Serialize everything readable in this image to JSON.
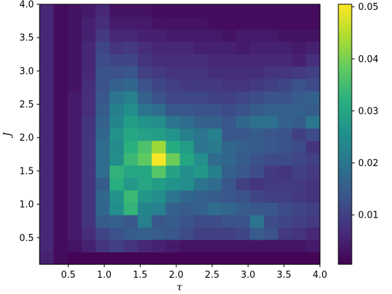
{
  "chart_data": {
    "type": "heatmap",
    "title": "",
    "xlabel": "τ",
    "ylabel": "J",
    "xlim": [
      0.1,
      4.0
    ],
    "ylim": [
      0.1,
      4.0
    ],
    "x_ticks": [
      "0.5",
      "1.0",
      "1.5",
      "2.0",
      "2.5",
      "3.0",
      "3.5",
      "4.0"
    ],
    "x_tick_values": [
      0.5,
      1.0,
      1.5,
      2.0,
      2.5,
      3.0,
      3.5,
      4.0
    ],
    "y_ticks": [
      "0.5",
      "1.0",
      "1.5",
      "2.0",
      "2.5",
      "3.0",
      "3.5",
      "4.0"
    ],
    "y_tick_values": [
      0.5,
      1.0,
      1.5,
      2.0,
      2.5,
      3.0,
      3.5,
      4.0
    ],
    "colormap": "viridis",
    "colorbar_range": [
      0.0005,
      0.0505
    ],
    "colorbar_ticks": [
      "0.01",
      "0.02",
      "0.03",
      "0.04",
      "0.05"
    ],
    "colorbar_tick_values": [
      0.01,
      0.02,
      0.03,
      0.04,
      0.05
    ],
    "grid": false,
    "z": [
      [
        0.005,
        0.002,
        0.001,
        0.001,
        0.001,
        0.001,
        0.001,
        0.001,
        0.001,
        0.001,
        0.001,
        0.001,
        0.001,
        0.001,
        0.001,
        0.001,
        0.001,
        0.001,
        0.001,
        0.001
      ],
      [
        0.006,
        0.002,
        0.003,
        0.005,
        0.008,
        0.01,
        0.008,
        0.006,
        0.005,
        0.004,
        0.003,
        0.003,
        0.003,
        0.003,
        0.003,
        0.003,
        0.003,
        0.003,
        0.003,
        0.004
      ],
      [
        0.006,
        0.002,
        0.004,
        0.007,
        0.011,
        0.013,
        0.015,
        0.016,
        0.015,
        0.014,
        0.012,
        0.01,
        0.01,
        0.01,
        0.011,
        0.015,
        0.013,
        0.009,
        0.008,
        0.006
      ],
      [
        0.006,
        0.002,
        0.004,
        0.008,
        0.015,
        0.016,
        0.014,
        0.022,
        0.014,
        0.015,
        0.013,
        0.012,
        0.012,
        0.013,
        0.013,
        0.02,
        0.012,
        0.011,
        0.01,
        0.009
      ],
      [
        0.006,
        0.002,
        0.004,
        0.008,
        0.017,
        0.025,
        0.033,
        0.023,
        0.022,
        0.016,
        0.015,
        0.016,
        0.018,
        0.017,
        0.015,
        0.014,
        0.014,
        0.012,
        0.011,
        0.01
      ],
      [
        0.006,
        0.002,
        0.004,
        0.008,
        0.017,
        0.026,
        0.034,
        0.027,
        0.025,
        0.02,
        0.017,
        0.016,
        0.015,
        0.014,
        0.013,
        0.011,
        0.01,
        0.01,
        0.009,
        0.008
      ],
      [
        0.006,
        0.002,
        0.004,
        0.008,
        0.015,
        0.032,
        0.027,
        0.03,
        0.028,
        0.026,
        0.025,
        0.02,
        0.018,
        0.014,
        0.01,
        0.008,
        0.009,
        0.009,
        0.009,
        0.008
      ],
      [
        0.006,
        0.002,
        0.004,
        0.008,
        0.018,
        0.033,
        0.03,
        0.03,
        0.037,
        0.029,
        0.025,
        0.027,
        0.022,
        0.016,
        0.014,
        0.012,
        0.009,
        0.008,
        0.01,
        0.009
      ],
      [
        0.006,
        0.002,
        0.004,
        0.008,
        0.018,
        0.025,
        0.034,
        0.038,
        0.05,
        0.039,
        0.03,
        0.025,
        0.018,
        0.017,
        0.015,
        0.013,
        0.012,
        0.012,
        0.011,
        0.01
      ],
      [
        0.006,
        0.002,
        0.004,
        0.008,
        0.018,
        0.024,
        0.032,
        0.036,
        0.043,
        0.031,
        0.028,
        0.02,
        0.021,
        0.017,
        0.016,
        0.015,
        0.014,
        0.013,
        0.012,
        0.008
      ],
      [
        0.006,
        0.002,
        0.004,
        0.008,
        0.017,
        0.026,
        0.03,
        0.029,
        0.028,
        0.026,
        0.022,
        0.02,
        0.022,
        0.014,
        0.014,
        0.015,
        0.014,
        0.013,
        0.01,
        0.012
      ],
      [
        0.006,
        0.002,
        0.004,
        0.008,
        0.016,
        0.023,
        0.028,
        0.026,
        0.025,
        0.02,
        0.018,
        0.016,
        0.016,
        0.014,
        0.017,
        0.019,
        0.019,
        0.016,
        0.015,
        0.02
      ],
      [
        0.006,
        0.002,
        0.004,
        0.007,
        0.015,
        0.022,
        0.025,
        0.02,
        0.018,
        0.014,
        0.014,
        0.013,
        0.013,
        0.012,
        0.013,
        0.015,
        0.016,
        0.016,
        0.016,
        0.015
      ],
      [
        0.006,
        0.002,
        0.004,
        0.007,
        0.014,
        0.02,
        0.022,
        0.016,
        0.013,
        0.011,
        0.011,
        0.011,
        0.01,
        0.01,
        0.011,
        0.012,
        0.013,
        0.013,
        0.015,
        0.016
      ],
      [
        0.006,
        0.002,
        0.003,
        0.007,
        0.013,
        0.016,
        0.017,
        0.013,
        0.011,
        0.01,
        0.009,
        0.009,
        0.009,
        0.008,
        0.008,
        0.009,
        0.01,
        0.011,
        0.013,
        0.012
      ],
      [
        0.006,
        0.002,
        0.003,
        0.006,
        0.013,
        0.013,
        0.014,
        0.01,
        0.009,
        0.008,
        0.008,
        0.008,
        0.007,
        0.007,
        0.007,
        0.007,
        0.008,
        0.008,
        0.009,
        0.01
      ],
      [
        0.006,
        0.002,
        0.003,
        0.006,
        0.012,
        0.011,
        0.011,
        0.008,
        0.007,
        0.007,
        0.007,
        0.007,
        0.006,
        0.006,
        0.006,
        0.006,
        0.006,
        0.006,
        0.005,
        0.007
      ],
      [
        0.006,
        0.002,
        0.003,
        0.006,
        0.011,
        0.008,
        0.009,
        0.007,
        0.006,
        0.006,
        0.006,
        0.005,
        0.005,
        0.005,
        0.004,
        0.005,
        0.005,
        0.005,
        0.004,
        0.005
      ],
      [
        0.006,
        0.002,
        0.003,
        0.005,
        0.009,
        0.006,
        0.006,
        0.005,
        0.005,
        0.004,
        0.004,
        0.004,
        0.004,
        0.003,
        0.004,
        0.004,
        0.004,
        0.003,
        0.003,
        0.003
      ],
      [
        0.006,
        0.002,
        0.003,
        0.005,
        0.007,
        0.004,
        0.004,
        0.004,
        0.003,
        0.003,
        0.003,
        0.003,
        0.002,
        0.002,
        0.002,
        0.002,
        0.002,
        0.002,
        0.002,
        0.002
      ],
      [
        0.006,
        0.002,
        0.003,
        0.004,
        0.006,
        0.003,
        0.003,
        0.003,
        0.002,
        0.002,
        0.002,
        0.002,
        0.002,
        0.002,
        0.002,
        0.002,
        0.002,
        0.002,
        0.002,
        0.002
      ]
    ]
  }
}
